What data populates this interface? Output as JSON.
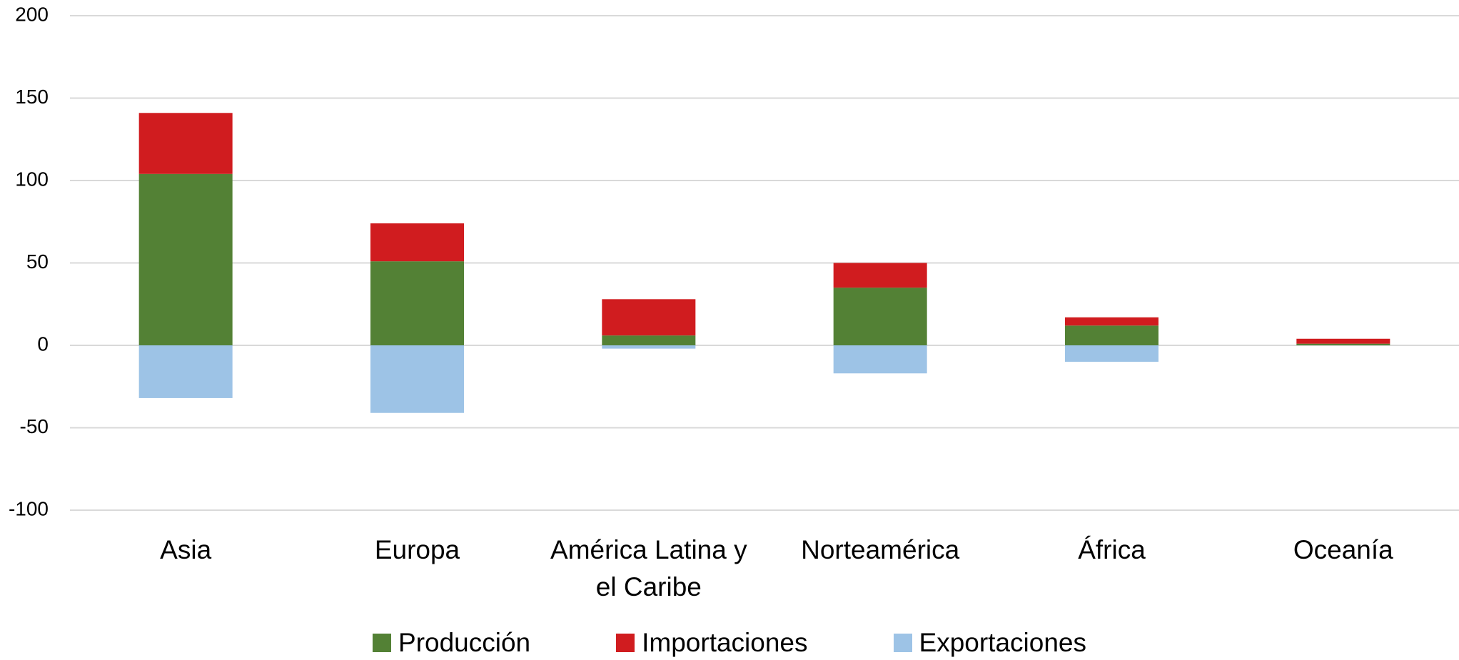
{
  "chart_data": {
    "type": "stacked_bar",
    "categories": [
      "Asia",
      "Europa",
      "América Latina y el Caribe",
      "Norteamérica",
      "África",
      "Oceanía"
    ],
    "series": [
      {
        "name": "Producción",
        "color": "#538135",
        "values": [
          104,
          51,
          6,
          35,
          12,
          1
        ]
      },
      {
        "name": "Importaciones",
        "color": "#d01c1f",
        "values": [
          37,
          23,
          22,
          15,
          5,
          3
        ]
      },
      {
        "name": "Exportaciones",
        "color": "#9dc3e6",
        "values": [
          -32,
          -41,
          -2,
          -17,
          -10,
          0
        ]
      }
    ],
    "ylim": [
      -100,
      200
    ],
    "yticks": [
      -100,
      -50,
      0,
      50,
      100,
      150,
      200
    ],
    "grid": true,
    "legend": "bottom"
  }
}
